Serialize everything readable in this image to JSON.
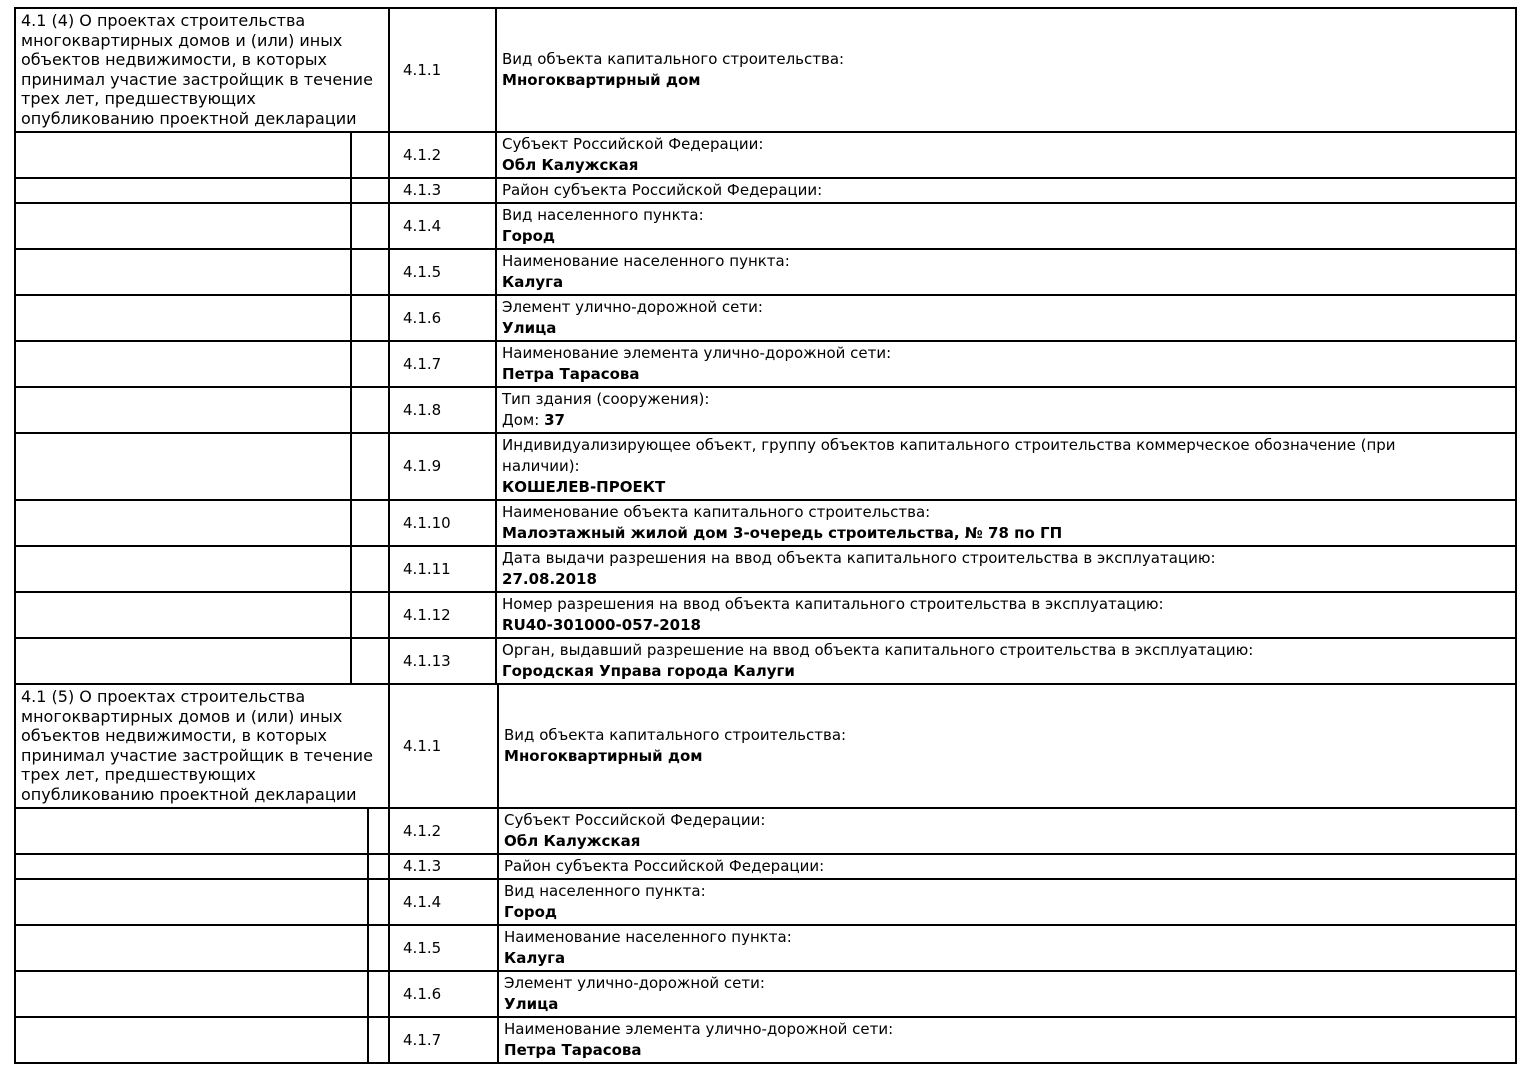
{
  "document": {
    "type": "project-declaration-table",
    "text_color": "#000000",
    "border_color": "#000000",
    "background_color": "#ffffff",
    "sections": [
      {
        "header": "4.1 (4) О проектах строительства многоквартирных домов и (или) иных объектов недвижимости, в которых принимал участие застройщик в течение трех лет, предшествующих опубликованию проектной декларации",
        "rows": [
          {
            "code": "4.1.1",
            "label": "Вид объекта капитального строительства:",
            "value": "Многоквартирный дом"
          },
          {
            "code": "4.1.2",
            "label": "Субъект Российской Федерации:",
            "value": "Обл Калужская"
          },
          {
            "code": "4.1.3",
            "label": "Район субъекта Российской Федерации:",
            "value": ""
          },
          {
            "code": "4.1.4",
            "label": "Вид населенного пункта:",
            "value": "Город"
          },
          {
            "code": "4.1.5",
            "label": "Наименование населенного пункта:",
            "value": "Калуга"
          },
          {
            "code": "4.1.6",
            "label": "Элемент улично-дорожной сети:",
            "value": "Улица"
          },
          {
            "code": "4.1.7",
            "label": "Наименование элемента улично-дорожной сети:",
            "value": "Петра Тарасова"
          },
          {
            "code": "4.1.8",
            "label": "Тип здания (сооружения):",
            "value_prefix": "Дом: ",
            "value": "37"
          },
          {
            "code": "4.1.9",
            "label": "Индивидуализирующее объект, группу объектов капитального строительства коммерческое обозначение (при наличии):",
            "value": "КОШЕЛЕВ-ПРОЕКТ"
          },
          {
            "code": "4.1.10",
            "label": "Наименование объекта капитального строительства:",
            "value": "Малоэтажный жилой дом 3-очередь строительства, № 78 по ГП"
          },
          {
            "code": "4.1.11",
            "label": "Дата выдачи разрешения на ввод объекта капитального строительства в эксплуатацию:",
            "value": "27.08.2018"
          },
          {
            "code": "4.1.12",
            "label": "Номер разрешения на ввод объекта капитального строительства в эксплуатацию:",
            "value": "RU40-301000-057-2018"
          },
          {
            "code": "4.1.13",
            "label": "Орган, выдавший разрешение на ввод объекта капитального строительства в эксплуатацию:",
            "value": "Городская Управа города Калуги"
          }
        ]
      },
      {
        "header": "4.1 (5) О проектах строительства многоквартирных домов и (или) иных объектов недвижимости, в которых принимал участие застройщик в течение трех лет, предшествующих опубликованию проектной декларации",
        "rows": [
          {
            "code": "4.1.1",
            "label": "Вид объекта капитального строительства:",
            "value": "Многоквартирный дом"
          },
          {
            "code": "4.1.2",
            "label": "Субъект Российской Федерации:",
            "value": "Обл Калужская"
          },
          {
            "code": "4.1.3",
            "label": "Район субъекта Российской Федерации:",
            "value": ""
          },
          {
            "code": "4.1.4",
            "label": "Вид населенного пункта:",
            "value": "Город"
          },
          {
            "code": "4.1.5",
            "label": "Наименование населенного пункта:",
            "value": "Калуга"
          },
          {
            "code": "4.1.6",
            "label": "Элемент улично-дорожной сети:",
            "value": "Улица"
          },
          {
            "code": "4.1.7",
            "label": "Наименование элемента улично-дорожной сети:",
            "value": "Петра Тарасова"
          }
        ]
      }
    ]
  }
}
